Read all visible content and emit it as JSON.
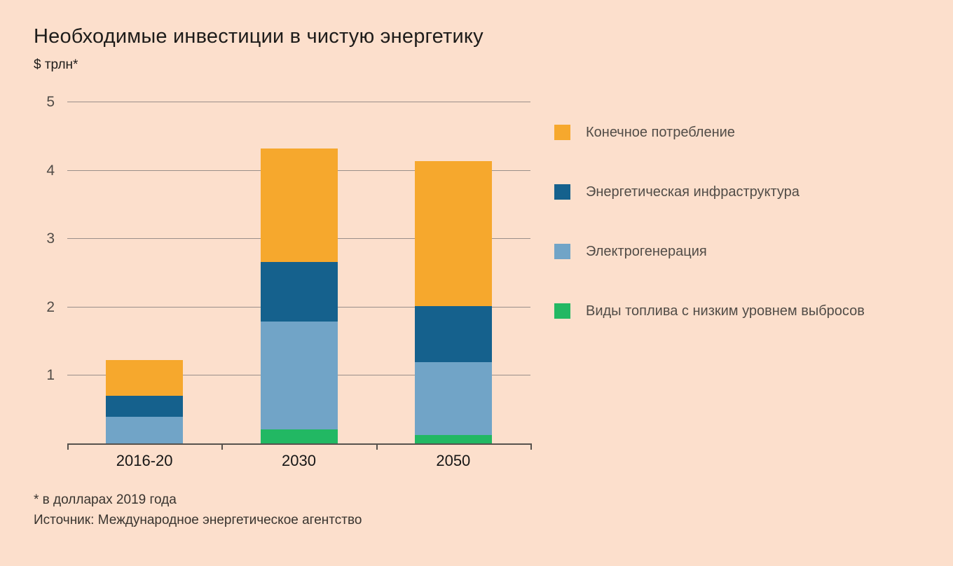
{
  "title": "Необходимые инвестиции в чистую энергетику",
  "unit_label": "$ трлн*",
  "footnotes": [
    "* в долларах 2019 года",
    "Источник: Международное энергетическое агентство"
  ],
  "colors": {
    "background": "#fcdfcc",
    "gridline": "#9a8f8a",
    "axis": "#57524d",
    "final_consumption": "#f6a82d",
    "energy_infrastructure": "#15618d",
    "electricity_generation": "#71a4c7",
    "low_emission_fuels": "#22b863"
  },
  "chart_data": {
    "type": "bar",
    "stacked": true,
    "title": "Необходимые инвестиции в чистую энергетику",
    "ylabel": "$ трлн*",
    "xlabel": "",
    "categories": [
      "2016-20",
      "2030",
      "2050"
    ],
    "series": [
      {
        "name": "Конечное потребление",
        "color": "#f6a82d",
        "values": [
          0.52,
          1.66,
          2.12
        ]
      },
      {
        "name": "Энергетическая инфраструктура",
        "color": "#15618d",
        "values": [
          0.31,
          0.87,
          0.82
        ]
      },
      {
        "name": "Электрогенерация",
        "color": "#71a4c7",
        "values": [
          0.39,
          1.58,
          1.07
        ]
      },
      {
        "name": "Виды топлива с низким уровнем выбросов",
        "color": "#22b863",
        "values": [
          0,
          0.2,
          0.12
        ]
      }
    ],
    "totals": [
      1.22,
      4.31,
      4.13
    ],
    "ylim": [
      0,
      5
    ],
    "yticks": [
      1,
      2,
      3,
      4,
      5
    ],
    "grid": true,
    "legend_position": "right"
  }
}
